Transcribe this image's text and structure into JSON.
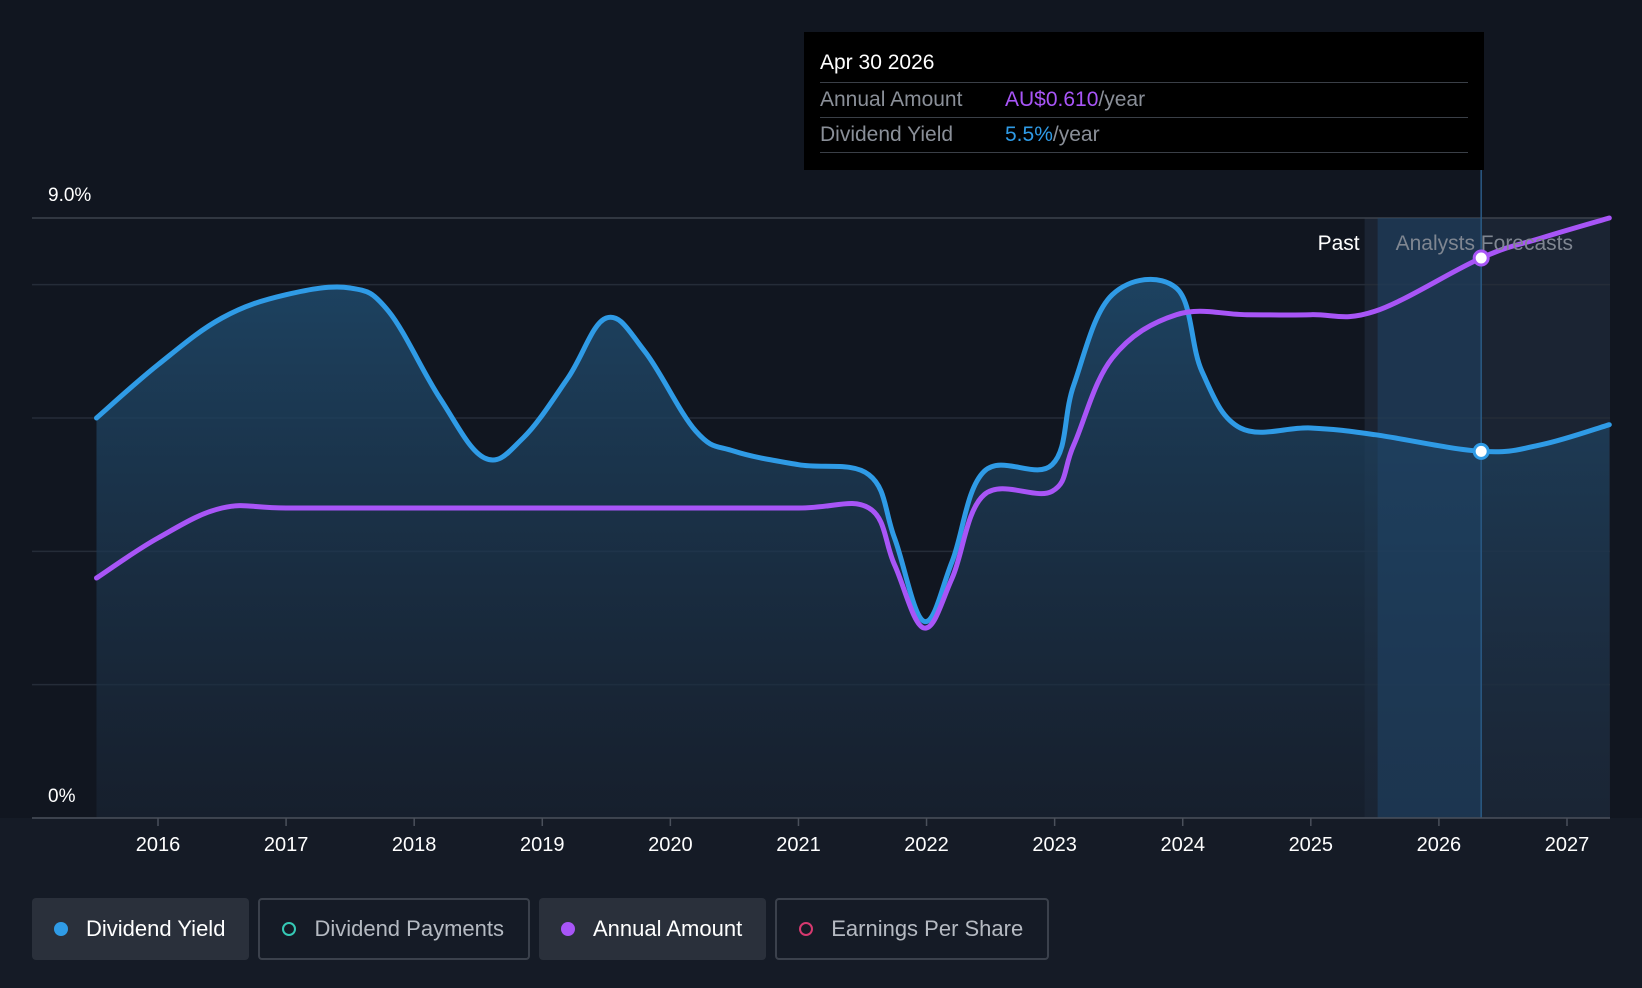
{
  "tooltip": {
    "date": "Apr 30 2026",
    "annual_label": "Annual Amount",
    "annual_value": "AU$0.610",
    "annual_suffix": "/year",
    "yield_label": "Dividend Yield",
    "yield_value": "5.5%",
    "yield_suffix": "/year"
  },
  "colors": {
    "background": "#151b26",
    "yield": "#2f9be6",
    "annual": "#a855f7",
    "payments": "#35c9b5",
    "eps": "#d6396f"
  },
  "legend": [
    {
      "label": "Dividend Yield",
      "active": true,
      "color": "#2f9be6",
      "filled": true
    },
    {
      "label": "Dividend Payments",
      "active": false,
      "color": "#35c9b5",
      "filled": false
    },
    {
      "label": "Annual Amount",
      "active": true,
      "color": "#a855f7",
      "filled": true
    },
    {
      "label": "Earnings Per Share",
      "active": false,
      "color": "#d6396f",
      "filled": false
    }
  ],
  "chart_data": {
    "type": "line",
    "xlabel": "",
    "ylabel": "",
    "ylim": [
      0,
      9.0
    ],
    "xlim": [
      2015.52,
      2027.33
    ],
    "y_tick_labels": [
      "0%",
      "9.0%"
    ],
    "x_ticks": [
      2016,
      2017,
      2018,
      2019,
      2020,
      2021,
      2022,
      2023,
      2024,
      2025,
      2026,
      2027
    ],
    "past_label": "Past",
    "forecast_label": "Analysts Forecasts",
    "forecast_start": 2025.42,
    "highlight_x": 2026.33,
    "grid": true,
    "series": [
      {
        "name": "Dividend Yield",
        "fill": true,
        "points": [
          [
            2015.52,
            6.0
          ],
          [
            2016.0,
            6.8
          ],
          [
            2016.5,
            7.5
          ],
          [
            2017.0,
            7.85
          ],
          [
            2017.5,
            7.95
          ],
          [
            2017.8,
            7.6
          ],
          [
            2018.2,
            6.3
          ],
          [
            2018.55,
            5.4
          ],
          [
            2018.85,
            5.7
          ],
          [
            2019.2,
            6.6
          ],
          [
            2019.5,
            7.5
          ],
          [
            2019.8,
            7.0
          ],
          [
            2020.2,
            5.8
          ],
          [
            2020.5,
            5.5
          ],
          [
            2021.0,
            5.3
          ],
          [
            2021.55,
            5.15
          ],
          [
            2021.75,
            4.2
          ],
          [
            2021.98,
            2.95
          ],
          [
            2022.2,
            3.85
          ],
          [
            2022.45,
            5.2
          ],
          [
            2022.98,
            5.3
          ],
          [
            2023.15,
            6.5
          ],
          [
            2023.45,
            7.85
          ],
          [
            2023.95,
            7.95
          ],
          [
            2024.15,
            6.7
          ],
          [
            2024.45,
            5.85
          ],
          [
            2025.0,
            5.85
          ],
          [
            2025.5,
            5.75
          ],
          [
            2026.33,
            5.5
          ],
          [
            2026.8,
            5.6
          ],
          [
            2027.33,
            5.9
          ]
        ]
      },
      {
        "name": "Annual Amount",
        "fill": false,
        "points": [
          [
            2015.52,
            3.6
          ],
          [
            2016.0,
            4.2
          ],
          [
            2016.5,
            4.65
          ],
          [
            2017.0,
            4.65
          ],
          [
            2018.0,
            4.65
          ],
          [
            2019.0,
            4.65
          ],
          [
            2020.0,
            4.65
          ],
          [
            2021.0,
            4.65
          ],
          [
            2021.55,
            4.65
          ],
          [
            2021.75,
            3.8
          ],
          [
            2021.98,
            2.85
          ],
          [
            2022.2,
            3.6
          ],
          [
            2022.45,
            4.85
          ],
          [
            2022.98,
            4.9
          ],
          [
            2023.15,
            5.6
          ],
          [
            2023.45,
            6.9
          ],
          [
            2023.95,
            7.55
          ],
          [
            2024.5,
            7.55
          ],
          [
            2025.0,
            7.55
          ],
          [
            2025.5,
            7.6
          ],
          [
            2026.33,
            8.4
          ],
          [
            2026.8,
            8.7
          ],
          [
            2027.33,
            9.0
          ]
        ]
      }
    ]
  }
}
